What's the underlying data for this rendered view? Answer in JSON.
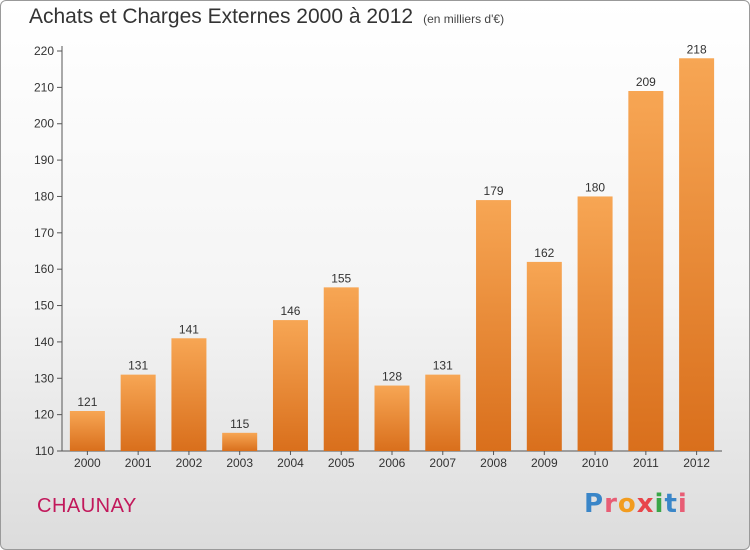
{
  "header": {
    "title": "Achats et Charges Externes 2000 à 2012",
    "subtitle": "(en milliers d'€)"
  },
  "footer": {
    "city": "CHAUNAY",
    "logo_text": "Proxiti"
  },
  "colors": {
    "bar_top": "#f7a654",
    "bar_bottom": "#d96f1c",
    "logo_letters": [
      "#3a86c8",
      "#e85d75",
      "#f29c1f",
      "#e8454a",
      "#3aa648",
      "#3a86c8",
      "#e85d75"
    ]
  },
  "chart_data": {
    "type": "bar",
    "title": "Achats et Charges Externes 2000 à 2012",
    "categories": [
      "2000",
      "2001",
      "2002",
      "2003",
      "2004",
      "2005",
      "2006",
      "2007",
      "2008",
      "2009",
      "2010",
      "2011",
      "2012"
    ],
    "values": [
      121,
      131,
      141,
      115,
      146,
      155,
      128,
      131,
      179,
      162,
      180,
      209,
      218
    ],
    "ylim": [
      110,
      220
    ],
    "yticks": [
      110,
      120,
      130,
      140,
      150,
      160,
      170,
      180,
      190,
      200,
      210,
      220
    ],
    "grid": false,
    "xlabel": "",
    "ylabel": ""
  }
}
